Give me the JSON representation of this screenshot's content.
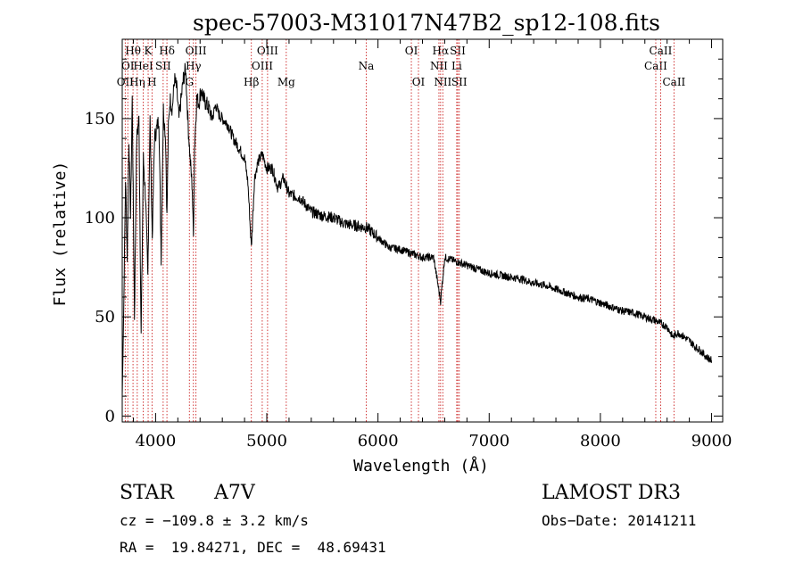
{
  "chart_data": {
    "type": "line",
    "title": "spec-57003-M31017N47B2_sp12-108.fits",
    "xlabel": "Wavelength (Å)",
    "ylabel": "Flux (relative)",
    "xlim": [
      3700,
      9100
    ],
    "ylim": [
      -3,
      190
    ],
    "x_ticks": [
      4000,
      5000,
      6000,
      7000,
      8000,
      9000
    ],
    "y_ticks": [
      0,
      50,
      100,
      150
    ],
    "grid": false,
    "series": [
      {
        "name": "flux",
        "x": [
          3700,
          3715,
          3730,
          3745,
          3760,
          3775,
          3790,
          3810,
          3830,
          3850,
          3870,
          3890,
          3910,
          3930,
          3950,
          3970,
          3990,
          4010,
          4030,
          4050,
          4070,
          4090,
          4102,
          4115,
          4130,
          4150,
          4170,
          4190,
          4210,
          4230,
          4250,
          4270,
          4290,
          4310,
          4330,
          4340,
          4350,
          4370,
          4390,
          4410,
          4430,
          4450,
          4480,
          4510,
          4540,
          4570,
          4600,
          4650,
          4700,
          4750,
          4800,
          4830,
          4861,
          4890,
          4920,
          4960,
          5000,
          5050,
          5100,
          5150,
          5200,
          5300,
          5400,
          5500,
          5600,
          5700,
          5800,
          5900,
          6000,
          6100,
          6200,
          6300,
          6400,
          6500,
          6563,
          6600,
          6700,
          6800,
          6900,
          7000,
          7100,
          7200,
          7300,
          7400,
          7500,
          7600,
          7700,
          7800,
          7900,
          8000,
          8100,
          8200,
          8300,
          8400,
          8500,
          8600,
          8650,
          8700,
          8800,
          8850,
          8900,
          8950,
          9000
        ],
        "values": [
          10,
          60,
          120,
          80,
          140,
          100,
          160,
          50,
          140,
          150,
          40,
          130,
          110,
          70,
          150,
          90,
          140,
          145,
          150,
          80,
          155,
          140,
          100,
          145,
          160,
          155,
          170,
          165,
          150,
          160,
          170,
          175,
          150,
          130,
          115,
          90,
          135,
          160,
          158,
          165,
          160,
          158,
          155,
          150,
          157,
          152,
          150,
          147,
          140,
          135,
          130,
          118,
          85,
          120,
          128,
          132,
          125,
          125,
          115,
          120,
          112,
          110,
          103,
          101,
          100,
          97,
          96,
          95,
          90,
          85,
          84,
          82,
          80,
          80,
          58,
          80,
          78,
          76,
          74,
          72,
          71,
          70,
          69,
          67,
          66,
          64,
          62,
          60,
          59,
          57,
          55,
          53,
          52,
          50,
          48,
          45,
          40,
          42,
          38,
          35,
          33,
          30,
          28
        ]
      }
    ],
    "line_markers": [
      {
        "label": "OII",
        "wavelength": 3727,
        "row": 2
      },
      {
        "label": "Hθ",
        "wavelength": 3797,
        "row": 0
      },
      {
        "label": "OI",
        "wavelength": 3750,
        "row": 1
      },
      {
        "label": "Hη",
        "wavelength": 3835,
        "row": 2
      },
      {
        "label": "HeI",
        "wavelength": 3889,
        "row": 1
      },
      {
        "label": "K",
        "wavelength": 3933,
        "row": 0
      },
      {
        "label": "H",
        "wavelength": 3968,
        "row": 2
      },
      {
        "label": "SII",
        "wavelength": 4068,
        "row": 1
      },
      {
        "label": "Hδ",
        "wavelength": 4102,
        "row": 0
      },
      {
        "label": "G",
        "wavelength": 4304,
        "row": 2
      },
      {
        "label": "Hγ",
        "wavelength": 4340,
        "row": 1
      },
      {
        "label": "OIII",
        "wavelength": 4363,
        "row": 0
      },
      {
        "label": "Hβ",
        "wavelength": 4861,
        "row": 2
      },
      {
        "label": "OIII",
        "wavelength": 4959,
        "row": 1
      },
      {
        "label": "OIII",
        "wavelength": 5007,
        "row": 0
      },
      {
        "label": "Mg",
        "wavelength": 5175,
        "row": 2
      },
      {
        "label": "Na",
        "wavelength": 5894,
        "row": 1
      },
      {
        "label": "OI",
        "wavelength": 6300,
        "row": 0
      },
      {
        "label": "OI",
        "wavelength": 6364,
        "row": 2
      },
      {
        "label": "NII",
        "wavelength": 6548,
        "row": 1
      },
      {
        "label": "Hα",
        "wavelength": 6563,
        "row": 0
      },
      {
        "label": "NII",
        "wavelength": 6583,
        "row": 2
      },
      {
        "label": "Li",
        "wavelength": 6708,
        "row": 1
      },
      {
        "label": "SII",
        "wavelength": 6717,
        "row": 0
      },
      {
        "label": "SII",
        "wavelength": 6731,
        "row": 2
      },
      {
        "label": "CaII",
        "wavelength": 8498,
        "row": 1
      },
      {
        "label": "CaII",
        "wavelength": 8542,
        "row": 0
      },
      {
        "label": "CaII",
        "wavelength": 8662,
        "row": 2
      }
    ]
  },
  "info": {
    "object_class": "STAR",
    "subclass": "A7V",
    "survey": "LAMOST DR3",
    "redshift_line": "cz = −109.8 ± 3.2 km/s",
    "obs_date_line": "Obs−Date: 20141211",
    "coords_line": "RA =  19.84271, DEC =  48.69431"
  },
  "colors": {
    "marker_line": "#cc2222",
    "spectrum": "#000000",
    "axes": "#000000"
  }
}
